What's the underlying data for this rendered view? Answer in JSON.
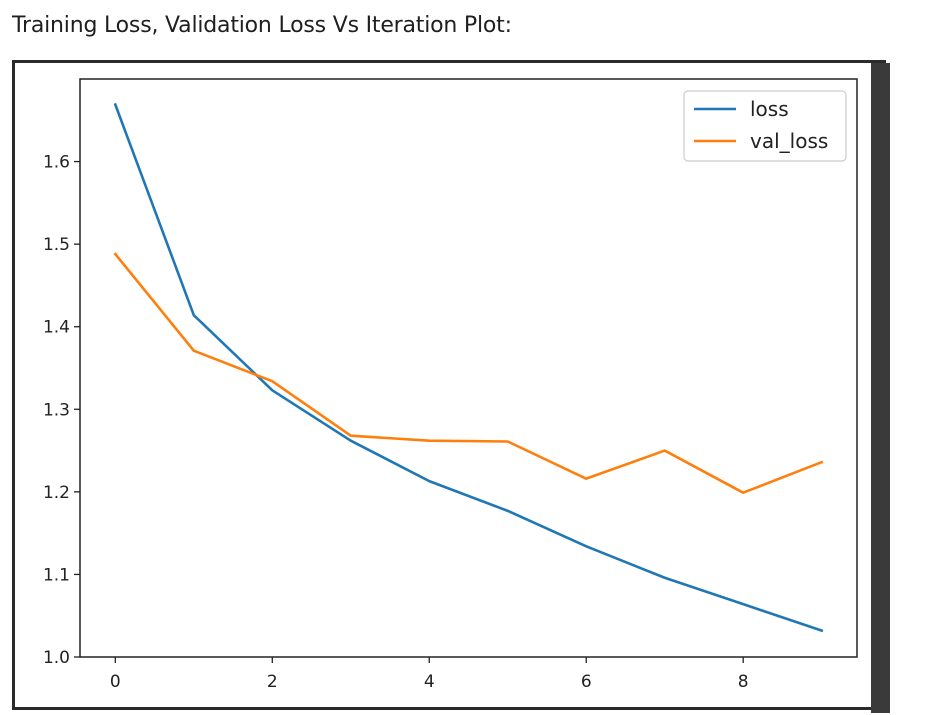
{
  "page": {
    "heading": "Training Loss, Validation Loss Vs Iteration Plot:"
  },
  "colors": {
    "loss": "#1f77b4",
    "val_loss": "#ff7f0e"
  },
  "chart_data": {
    "type": "line",
    "title": "",
    "xlabel": "",
    "ylabel": "",
    "x": [
      0,
      1,
      2,
      3,
      4,
      5,
      6,
      7,
      8,
      9
    ],
    "xlim": [
      -0.45,
      9.45
    ],
    "ylim": [
      1.0,
      1.7
    ],
    "xticks": [
      0,
      2,
      4,
      6,
      8
    ],
    "yticks": [
      1.0,
      1.1,
      1.2,
      1.3,
      1.4,
      1.5,
      1.6
    ],
    "ytick_labels": [
      "1.0",
      "1.1",
      "1.2",
      "1.3",
      "1.4",
      "1.5",
      "1.6"
    ],
    "xtick_labels": [
      "0",
      "2",
      "4",
      "6",
      "8"
    ],
    "grid": false,
    "legend_position": "top-right",
    "series": [
      {
        "name": "loss",
        "values": [
          1.669,
          1.414,
          1.323,
          1.262,
          1.213,
          1.177,
          1.134,
          1.096,
          1.064,
          1.032
        ]
      },
      {
        "name": "val_loss",
        "values": [
          1.488,
          1.371,
          1.334,
          1.268,
          1.262,
          1.261,
          1.216,
          1.25,
          1.199,
          1.236
        ]
      }
    ]
  }
}
